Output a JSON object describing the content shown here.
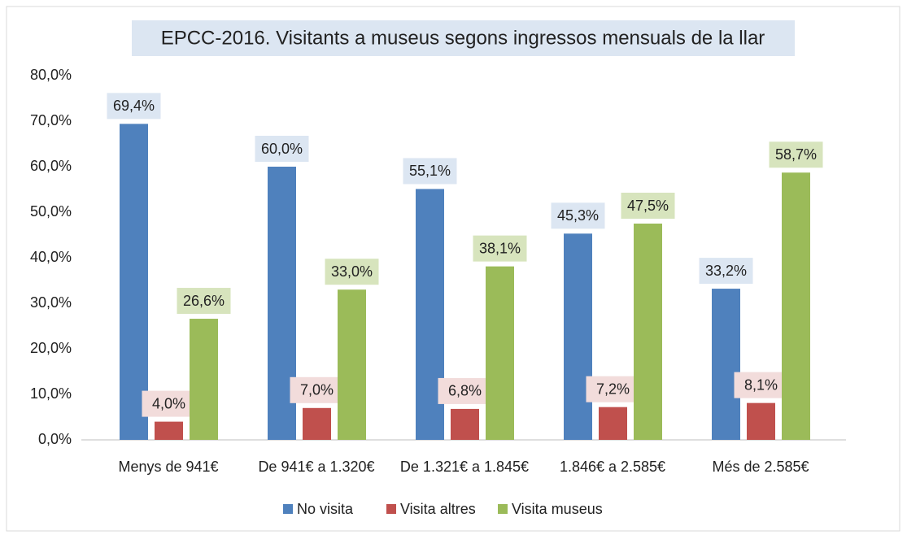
{
  "chart_data": {
    "type": "bar",
    "title": "EPCC-2016. Visitants a museus segons ingressos mensuals de la llar",
    "categories": [
      "Menys de 941€",
      "De 941€ a 1.320€",
      "De 1.321€ a 1.845€",
      "1.846€ a 2.585€",
      "Més de 2.585€"
    ],
    "series": [
      {
        "name": "No visita",
        "color": "#4f81bd",
        "label_color": "#dce6f2",
        "values": [
          69.4,
          60.0,
          55.1,
          45.3,
          33.2
        ],
        "value_labels": [
          "69,4%",
          "60,0%",
          "55,1%",
          "45,3%",
          "33,2%"
        ]
      },
      {
        "name": "Visita altres",
        "color": "#c0504d",
        "label_color": "#f2dcdb",
        "values": [
          4.0,
          7.0,
          6.8,
          7.2,
          8.1
        ],
        "value_labels": [
          "4,0%",
          "7,0%",
          "6,8%",
          "7,2%",
          "8,1%"
        ]
      },
      {
        "name": "Visita museus",
        "color": "#9bbb59",
        "label_color": "#d7e4bd",
        "values": [
          26.6,
          33.0,
          38.1,
          47.5,
          58.7
        ],
        "value_labels": [
          "26,6%",
          "33,0%",
          "38,1%",
          "47,5%",
          "58,7%"
        ]
      }
    ],
    "ylim": [
      0,
      80
    ],
    "yticks": [
      {
        "value": 0,
        "label": "0,0%"
      },
      {
        "value": 10,
        "label": "10,0%"
      },
      {
        "value": 20,
        "label": "20,0%"
      },
      {
        "value": 30,
        "label": "30,0%"
      },
      {
        "value": 40,
        "label": "40,0%"
      },
      {
        "value": 50,
        "label": "50,0%"
      },
      {
        "value": 60,
        "label": "60,0%"
      },
      {
        "value": 70,
        "label": "70,0%"
      },
      {
        "value": 80,
        "label": "80,0%"
      }
    ],
    "grid": false,
    "legend": "bottom"
  }
}
